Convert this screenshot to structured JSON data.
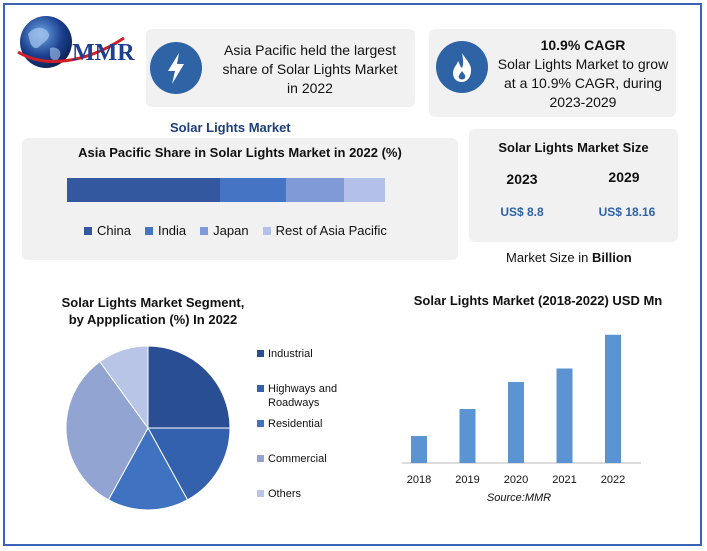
{
  "logo_text": "MMR",
  "callout_left": {
    "text_lines": [
      "Asia Pacific held the largest",
      "share of Solar Lights Market",
      "in 2022"
    ],
    "icon": "lightning-icon"
  },
  "callout_right": {
    "title": "10.9% CAGR",
    "text_lines": [
      "Solar Lights Market to grow",
      "at a 10.9% CAGR, during",
      "2023-2029"
    ],
    "icon": "flame-icon"
  },
  "section_title": "Solar Lights Market",
  "market_size": {
    "title": "Solar Lights Market Size",
    "years": [
      "2023",
      "2029"
    ],
    "values": [
      "US$ 8.8",
      "US$ 18.16"
    ],
    "note_prefix": "Market Size in ",
    "note_bold": "Billion"
  },
  "colors": {
    "accent": "#2e63a6",
    "value_blue": "#2e63a6",
    "frame": "#3a63b8"
  },
  "chart_data": [
    {
      "type": "bar",
      "orientation": "horizontal-stacked",
      "title": "Asia Pacific Share in Solar Lights Market in 2022 (%)",
      "series": [
        {
          "name": "China",
          "value": 48,
          "color": "#34589f"
        },
        {
          "name": "India",
          "value": 21,
          "color": "#4574c4"
        },
        {
          "name": "Japan",
          "value": 18,
          "color": "#7f9ad6"
        },
        {
          "name": "Rest of Asia Pacific",
          "value": 13,
          "color": "#b3c1e8"
        }
      ]
    },
    {
      "type": "pie",
      "title_lines": [
        "Solar Lights Market Segment,",
        "by Appplication (%) In 2022"
      ],
      "legend": [
        {
          "label_lines": [
            "Industrial"
          ],
          "color": "#2a4e94"
        },
        {
          "label_lines": [
            "Highways and",
            "Roadways"
          ],
          "color": "#3461ad"
        },
        {
          "label_lines": [
            "Residential"
          ],
          "color": "#3f72c0"
        },
        {
          "label_lines": [
            "Commercial"
          ],
          "color": "#91a4d2"
        },
        {
          "label_lines": [
            "Others"
          ],
          "color": "#b9c5e6"
        }
      ],
      "slices": [
        {
          "name": "Industrial",
          "value": 25,
          "color": "#2a4e94"
        },
        {
          "name": "Highways and Roadways",
          "value": 17,
          "color": "#3461ad"
        },
        {
          "name": "Residential",
          "value": 16,
          "color": "#3f72c0"
        },
        {
          "name": "Commercial",
          "value": 32,
          "color": "#91a4d2"
        },
        {
          "name": "Others",
          "value": 10,
          "color": "#b9c5e6"
        }
      ]
    },
    {
      "type": "bar",
      "title": "Solar Lights Market (2018-2022) USD Mn",
      "categories": [
        "2018",
        "2019",
        "2020",
        "2021",
        "2022"
      ],
      "values": [
        20,
        40,
        60,
        70,
        95
      ],
      "ylim": [
        0,
        100
      ],
      "color": "#5b93d3",
      "source": "Source:MMR"
    }
  ]
}
